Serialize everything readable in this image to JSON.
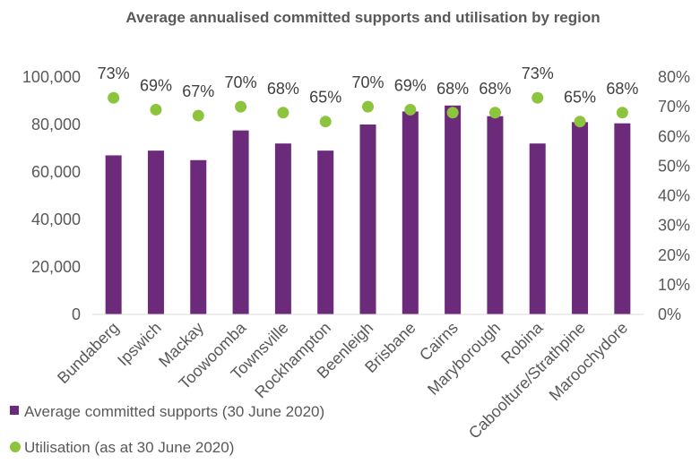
{
  "chart_data": {
    "type": "bar",
    "title": "Average annualised committed supports and utilisation by region",
    "categories": [
      "Bundaberg",
      "Ipswich",
      "Mackay",
      "Toowoomba",
      "Townsville",
      "Rockhampton",
      "Beenleigh",
      "Brisbane",
      "Cairns",
      "Maryborough",
      "Robina",
      "Caboolture/Strathpine",
      "Maroochydore"
    ],
    "series": [
      {
        "name": "Average committed supports (30 June 2020)",
        "type": "bar",
        "axis": "left",
        "color": "#6b2a7a",
        "values": [
          67000,
          69000,
          65000,
          77500,
          72000,
          69000,
          80000,
          85500,
          88000,
          83500,
          72000,
          81000,
          80500
        ]
      },
      {
        "name": "Utilisation (as at 30 June 2020)",
        "type": "scatter",
        "axis": "right",
        "color": "#8cc43d",
        "values": [
          0.73,
          0.69,
          0.67,
          0.7,
          0.68,
          0.65,
          0.7,
          0.69,
          0.68,
          0.68,
          0.73,
          0.65,
          0.68
        ],
        "labels": [
          "73%",
          "69%",
          "67%",
          "70%",
          "68%",
          "65%",
          "70%",
          "69%",
          "68%",
          "68%",
          "73%",
          "65%",
          "68%"
        ]
      }
    ],
    "ylim_left": [
      0,
      100000
    ],
    "ylim_right": [
      0,
      0.8
    ],
    "yticks_left": [
      "0",
      "20,000",
      "40,000",
      "60,000",
      "80,000",
      "100,000"
    ],
    "yticks_right": [
      "0%",
      "10%",
      "20%",
      "30%",
      "40%",
      "50%",
      "60%",
      "70%",
      "80%"
    ],
    "grid": false,
    "legend_position": "bottom-left"
  }
}
